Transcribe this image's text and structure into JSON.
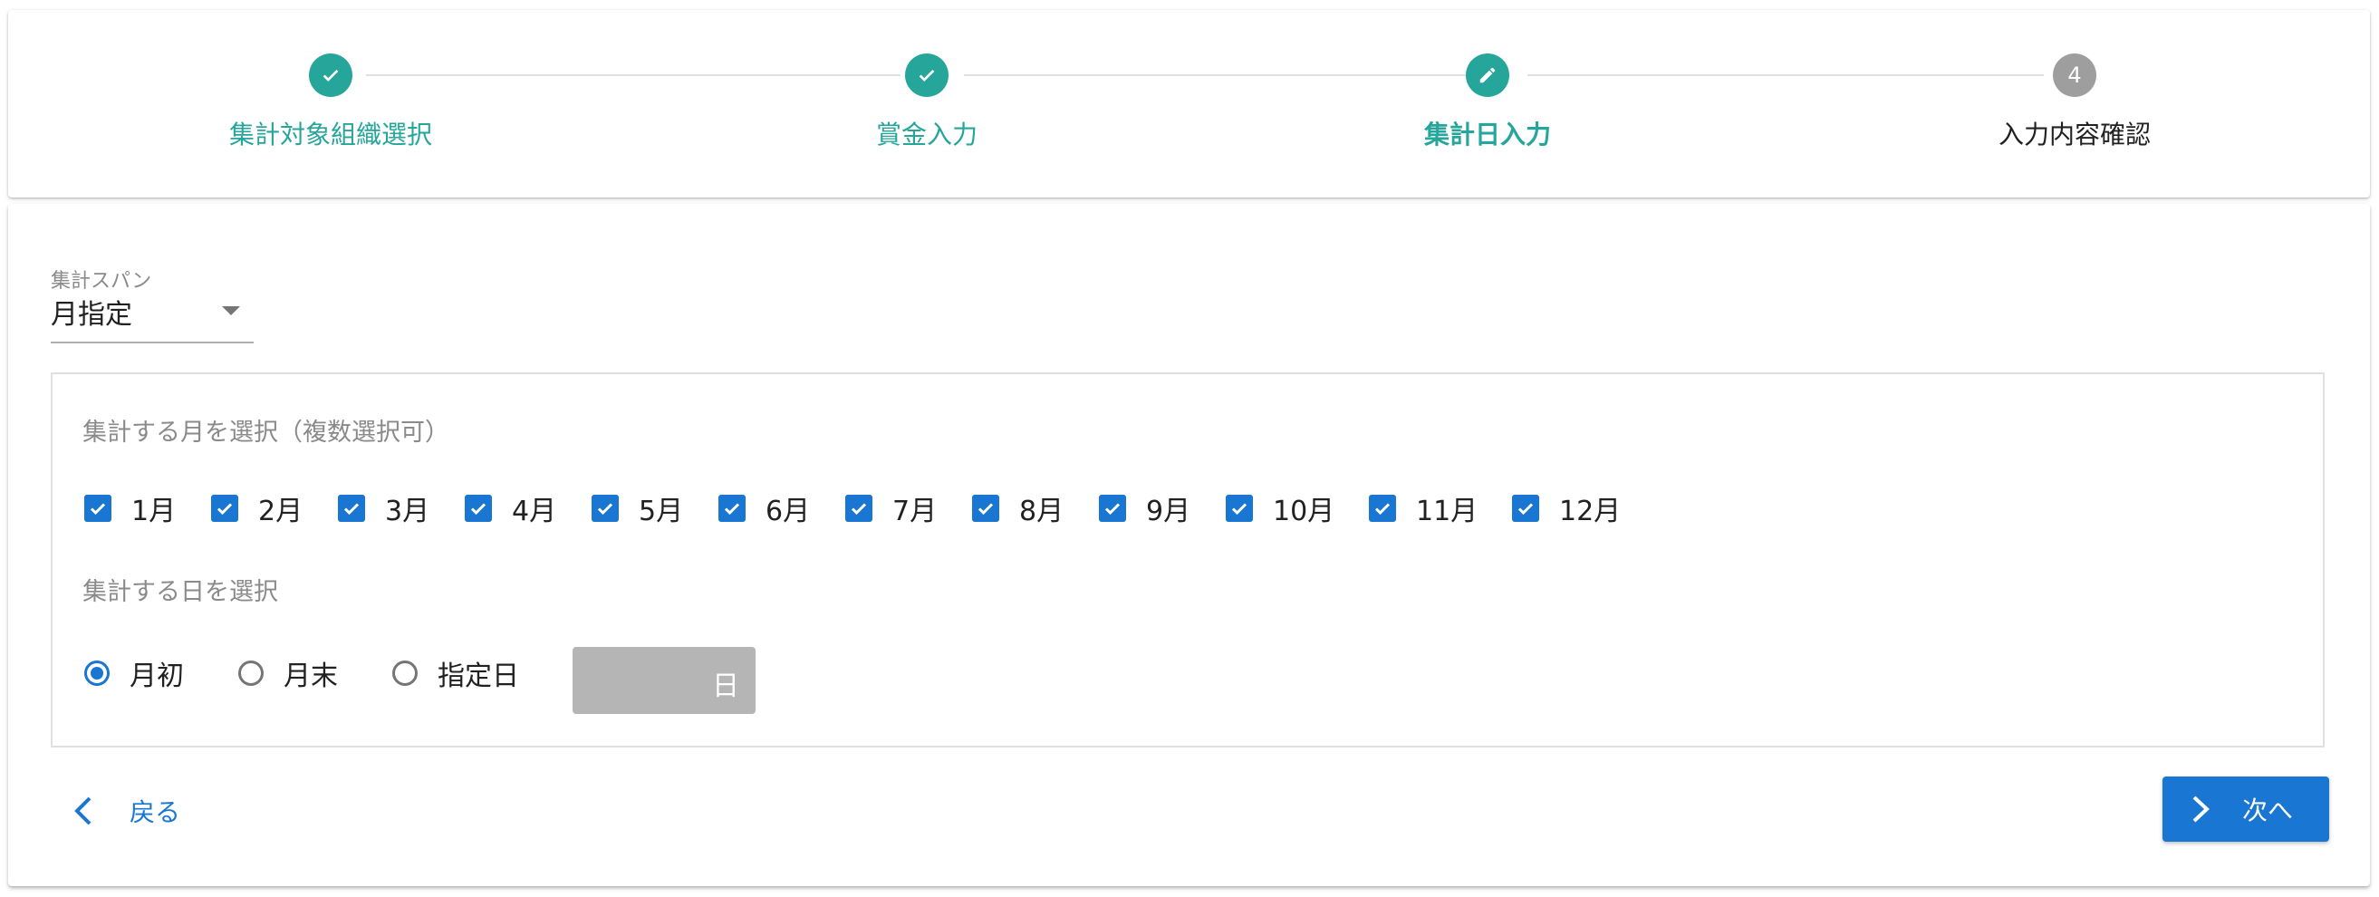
{
  "stepper": {
    "steps": [
      {
        "label": "集計対象組織選択",
        "state": "done",
        "icon": "check-icon"
      },
      {
        "label": "賞金入力",
        "state": "done",
        "icon": "check-icon"
      },
      {
        "label": "集計日入力",
        "state": "active",
        "icon": "pencil-icon"
      },
      {
        "label": "入力内容確認",
        "state": "pending",
        "number": "4"
      }
    ],
    "accent_color": "#26a69a",
    "pending_color": "#9e9e9e"
  },
  "span_select": {
    "label": "集計スパン",
    "value": "月指定"
  },
  "months_section": {
    "title": "集計する月を選択（複数選択可）",
    "months": [
      {
        "label": "1月",
        "checked": true
      },
      {
        "label": "2月",
        "checked": true
      },
      {
        "label": "3月",
        "checked": true
      },
      {
        "label": "4月",
        "checked": true
      },
      {
        "label": "5月",
        "checked": true
      },
      {
        "label": "6月",
        "checked": true
      },
      {
        "label": "7月",
        "checked": true
      },
      {
        "label": "8月",
        "checked": true
      },
      {
        "label": "9月",
        "checked": true
      },
      {
        "label": "10月",
        "checked": true
      },
      {
        "label": "11月",
        "checked": true
      },
      {
        "label": "12月",
        "checked": true
      }
    ]
  },
  "days_section": {
    "title": "集計する日を選択",
    "options": [
      {
        "label": "月初",
        "selected": true
      },
      {
        "label": "月末",
        "selected": false
      },
      {
        "label": "指定日",
        "selected": false
      }
    ],
    "day_field": {
      "value": "",
      "suffix": "日",
      "disabled": true
    }
  },
  "actions": {
    "back_label": "戻る",
    "next_label": "次へ",
    "primary_color": "#1976d2"
  }
}
